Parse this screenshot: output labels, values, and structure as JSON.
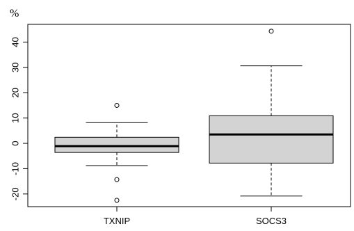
{
  "chart_data": {
    "type": "boxplot",
    "title": "",
    "xlabel": "",
    "ylabel": "%",
    "ylim": [
      -25,
      47
    ],
    "yticks": [
      -20,
      -10,
      0,
      10,
      20,
      30,
      40
    ],
    "yticklabels": [
      "-20",
      "-10",
      "0",
      "10",
      "20",
      "30",
      "40"
    ],
    "grid": false,
    "legend": "none",
    "box_fill": "#d3d3d3",
    "categories": [
      "TXNIP",
      "SOCS3"
    ],
    "series": [
      {
        "category": "TXNIP",
        "whisker_low": -8.8,
        "q1": -3.6,
        "median": -1.1,
        "q3": 2.4,
        "whisker_high": 8.2,
        "outliers": [
          15.0,
          -14.3,
          -22.5
        ]
      },
      {
        "category": "SOCS3",
        "whisker_low": -20.8,
        "q1": -7.8,
        "median": 3.5,
        "q3": 10.9,
        "whisker_high": 30.6,
        "outliers": [
          44.3
        ]
      }
    ]
  }
}
